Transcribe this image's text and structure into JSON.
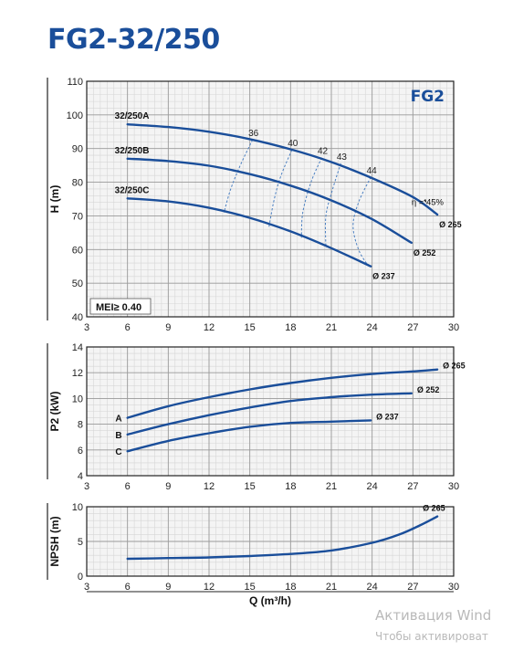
{
  "title": "FG2-32/250",
  "watermark": {
    "line1": "Активация Wind",
    "line2": "Чтобы активироват"
  },
  "chart_data": [
    {
      "type": "line",
      "ylabel": "H (m)",
      "xlim": [
        3,
        30
      ],
      "ylim": [
        40,
        110
      ],
      "x_ticks": [
        3,
        6,
        9,
        12,
        15,
        18,
        21,
        24,
        27,
        30
      ],
      "y_ticks": [
        40,
        50,
        60,
        70,
        80,
        90,
        100,
        110
      ],
      "grid": true,
      "badge": "FG2",
      "note": "MEI≥ 0.40",
      "series": [
        {
          "name": "32/250A",
          "end_label": "Ø 265",
          "color": "#1a4e9a",
          "points": [
            [
              6,
              97.2
            ],
            [
              9,
              96.4
            ],
            [
              12,
              95.0
            ],
            [
              15,
              92.8
            ],
            [
              18,
              89.8
            ],
            [
              21,
              86.0
            ],
            [
              24,
              81.2
            ],
            [
              27,
              75.6
            ],
            [
              28.8,
              70.4
            ]
          ]
        },
        {
          "name": "32/250B",
          "end_label": "Ø 252",
          "color": "#1a4e9a",
          "points": [
            [
              6,
              87.0
            ],
            [
              9,
              86.3
            ],
            [
              12,
              84.9
            ],
            [
              15,
              82.4
            ],
            [
              18,
              79.0
            ],
            [
              21,
              74.6
            ],
            [
              24,
              69.0
            ],
            [
              26.9,
              62.0
            ]
          ]
        },
        {
          "name": "32/250C",
          "end_label": "Ø 237",
          "color": "#1a4e9a",
          "points": [
            [
              6,
              75.2
            ],
            [
              9,
              74.3
            ],
            [
              12,
              72.4
            ],
            [
              15,
              69.4
            ],
            [
              18,
              65.4
            ],
            [
              21,
              60.4
            ],
            [
              23.9,
              55.0
            ]
          ]
        }
      ],
      "efficiency_lines": [
        {
          "label": "36",
          "points": [
            [
              15.2,
              92.6
            ],
            [
              14.3,
              85.0
            ],
            [
              13.6,
              78.0
            ],
            [
              13.1,
              71.0
            ]
          ]
        },
        {
          "label": "40",
          "points": [
            [
              18.1,
              89.6
            ],
            [
              17.3,
              82.0
            ],
            [
              16.8,
              75.0
            ],
            [
              16.4,
              66.5
            ]
          ]
        },
        {
          "label": "42",
          "points": [
            [
              20.3,
              87.3
            ],
            [
              19.5,
              80.0
            ],
            [
              18.9,
              71.0
            ],
            [
              18.8,
              63.5
            ]
          ]
        },
        {
          "label": "43",
          "points": [
            [
              21.7,
              85.6
            ],
            [
              21.1,
              78.0
            ],
            [
              20.6,
              70.0
            ],
            [
              20.6,
              60.5
            ]
          ]
        },
        {
          "label": "44",
          "points": [
            [
              23.9,
              81.5
            ],
            [
              23.0,
              74.0
            ],
            [
              22.6,
              67.0
            ],
            [
              23.0,
              60.0
            ],
            [
              23.7,
              55.2
            ]
          ]
        }
      ],
      "efficiency_annotation": "η = 45%"
    },
    {
      "type": "line",
      "ylabel": "P2 (kW)",
      "xlim": [
        3,
        30
      ],
      "ylim": [
        4,
        14
      ],
      "x_ticks": [
        3,
        6,
        9,
        12,
        15,
        18,
        21,
        24,
        27,
        30
      ],
      "y_ticks": [
        4,
        6,
        8,
        10,
        12,
        14
      ],
      "grid": true,
      "series": [
        {
          "name": "A",
          "end_label": "Ø 265",
          "color": "#1a4e9a",
          "points": [
            [
              6,
              8.5
            ],
            [
              9,
              9.4
            ],
            [
              12,
              10.1
            ],
            [
              15,
              10.7
            ],
            [
              18,
              11.2
            ],
            [
              21,
              11.6
            ],
            [
              24,
              11.9
            ],
            [
              27,
              12.1
            ],
            [
              28.8,
              12.25
            ]
          ]
        },
        {
          "name": "B",
          "end_label": "Ø 252",
          "color": "#1a4e9a",
          "points": [
            [
              6,
              7.2
            ],
            [
              9,
              8.0
            ],
            [
              12,
              8.7
            ],
            [
              15,
              9.3
            ],
            [
              18,
              9.8
            ],
            [
              21,
              10.1
            ],
            [
              24,
              10.3
            ],
            [
              26.9,
              10.4
            ]
          ]
        },
        {
          "name": "C",
          "end_label": "Ø 237",
          "color": "#1a4e9a",
          "points": [
            [
              6,
              5.9
            ],
            [
              9,
              6.7
            ],
            [
              12,
              7.3
            ],
            [
              15,
              7.8
            ],
            [
              18,
              8.1
            ],
            [
              21,
              8.2
            ],
            [
              23.9,
              8.3
            ]
          ]
        }
      ]
    },
    {
      "type": "line",
      "xlabel": "Q (m³/h)",
      "ylabel": "NPSH (m)",
      "xlim": [
        3,
        30
      ],
      "ylim": [
        0,
        10
      ],
      "x_ticks": [
        3,
        6,
        9,
        12,
        15,
        18,
        21,
        24,
        27,
        30
      ],
      "y_ticks": [
        0,
        5,
        10
      ],
      "grid": true,
      "series": [
        {
          "name": "",
          "end_label": "Ø 265",
          "color": "#1a4e9a",
          "points": [
            [
              6,
              2.5
            ],
            [
              9,
              2.6
            ],
            [
              12,
              2.7
            ],
            [
              15,
              2.9
            ],
            [
              18,
              3.2
            ],
            [
              21,
              3.7
            ],
            [
              24,
              4.8
            ],
            [
              26,
              6.0
            ],
            [
              27.5,
              7.3
            ],
            [
              28.8,
              8.6
            ]
          ]
        }
      ]
    }
  ]
}
